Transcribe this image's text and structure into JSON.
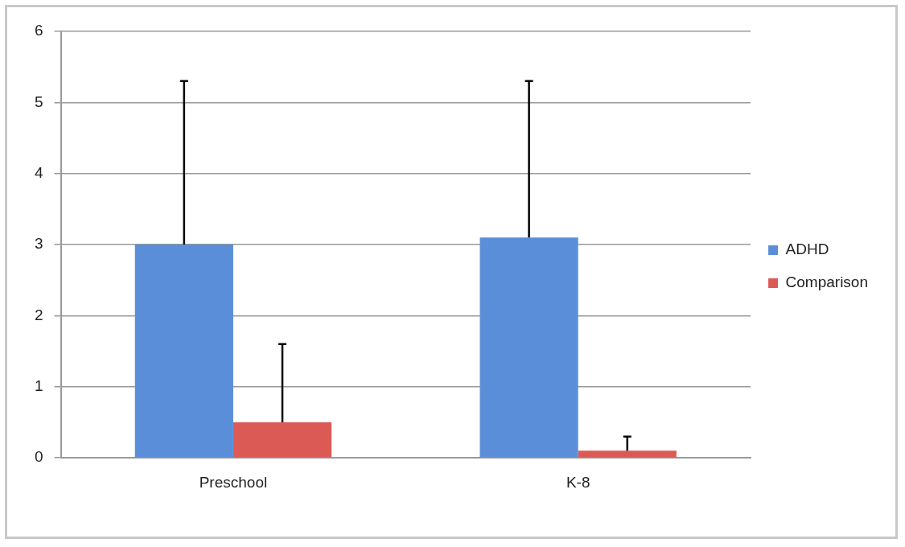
{
  "chart_data": {
    "type": "bar",
    "categories": [
      "Preschool",
      "K-8"
    ],
    "series": [
      {
        "name": "ADHD",
        "color": "#5b8ed8",
        "values": [
          3.0,
          3.1
        ],
        "errors": [
          [
            3.0,
            5.3
          ],
          [
            3.1,
            5.3
          ]
        ]
      },
      {
        "name": "Comparison",
        "color": "#db5a56",
        "values": [
          0.5,
          0.1
        ],
        "errors": [
          [
            0.5,
            1.6
          ],
          [
            0.1,
            0.3
          ]
        ]
      }
    ],
    "ylim": [
      0,
      6
    ],
    "yticks": [
      0,
      1,
      2,
      3,
      4,
      5,
      6
    ],
    "grid": "y",
    "legend": "right"
  }
}
